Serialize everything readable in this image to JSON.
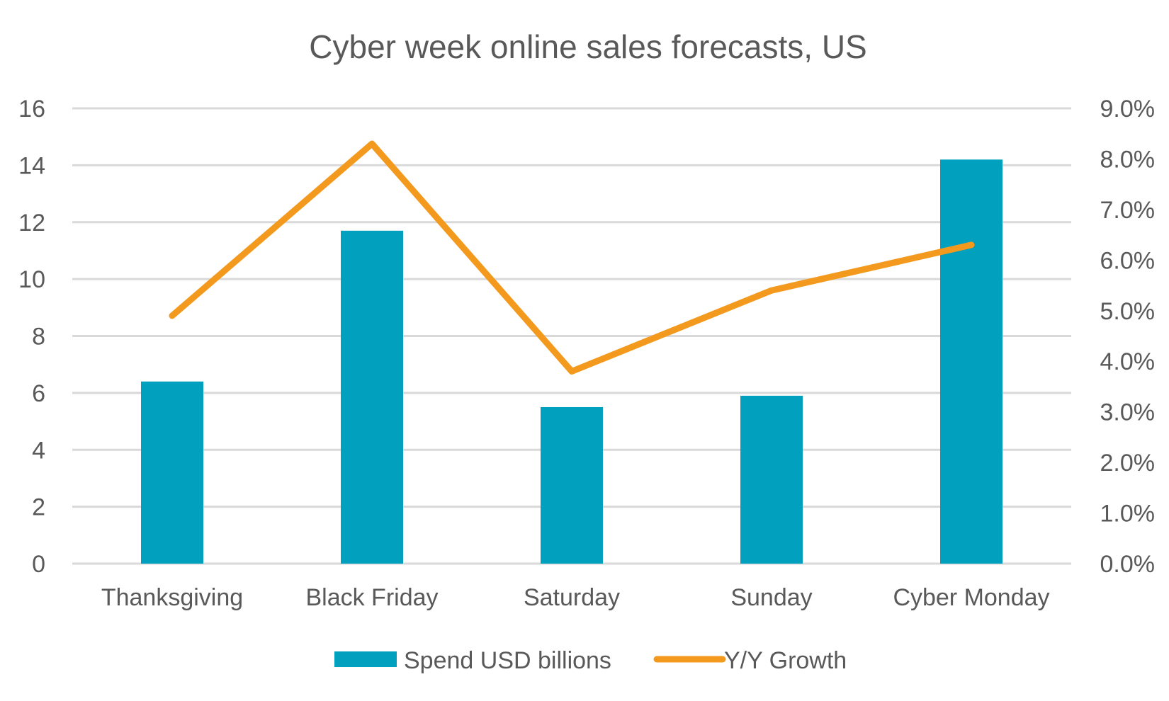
{
  "chart_data": {
    "type": "bar",
    "title": "Cyber week online sales forecasts, US",
    "categories": [
      "Thanksgiving",
      "Black Friday",
      "Saturday",
      "Sunday",
      "Cyber Monday"
    ],
    "series": [
      {
        "name": "Spend USD billions",
        "type": "bar",
        "axis": "left",
        "color": "#00A0BE",
        "values": [
          6.4,
          11.7,
          5.5,
          5.9,
          14.2
        ]
      },
      {
        "name": "Y/Y Growth",
        "type": "line",
        "axis": "right",
        "color": "#F39A1E",
        "values": [
          4.9,
          8.3,
          3.8,
          5.4,
          6.3
        ]
      }
    ],
    "left_axis": {
      "ylim": [
        0,
        16
      ],
      "ticks": [
        0,
        2,
        4,
        6,
        8,
        10,
        12,
        14,
        16
      ],
      "tick_labels": [
        "0",
        "2",
        "4",
        "6",
        "8",
        "10",
        "12",
        "14",
        "16"
      ]
    },
    "right_axis": {
      "ylim": [
        0,
        9
      ],
      "ticks": [
        0,
        1,
        2,
        3,
        4,
        5,
        6,
        7,
        8,
        9
      ],
      "tick_labels": [
        "0.0%",
        "1.0%",
        "2.0%",
        "3.0%",
        "4.0%",
        "5.0%",
        "6.0%",
        "7.0%",
        "8.0%",
        "9.0%"
      ]
    },
    "grid": true,
    "legend": {
      "position": "bottom",
      "labels": [
        "Spend USD billions",
        "Y/Y Growth"
      ]
    },
    "xlabel": "",
    "ylabel": ""
  }
}
